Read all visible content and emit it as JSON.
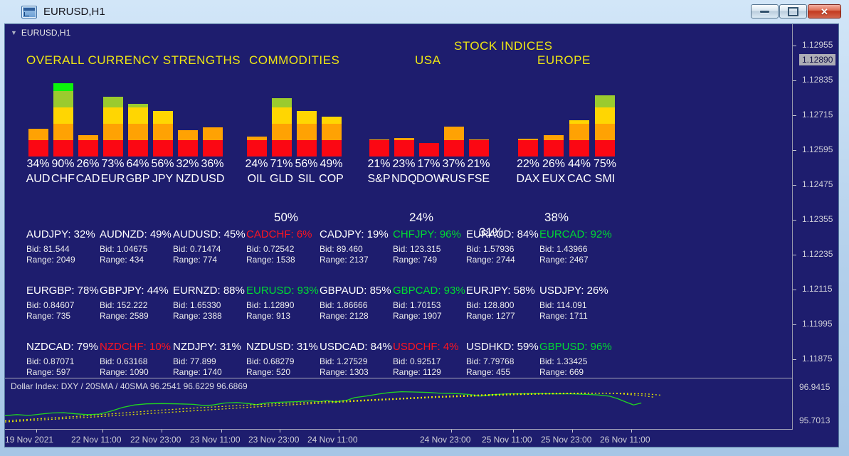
{
  "window": {
    "title": "EURUSD,H1"
  },
  "icons": {
    "dropdown": "▼"
  },
  "chart": {
    "symbol_label": "EURUSD,H1"
  },
  "sections": {
    "currency_strengths": "OVERALL CURRENCY STRENGTHS",
    "commodities": "COMMODITIES",
    "stock_indices": "STOCK INDICES",
    "usa": "USA",
    "europe": "EUROPE"
  },
  "summaries": {
    "commodities": "50%",
    "usa": "24%",
    "overall": "31%",
    "europe": "38%"
  },
  "bar_band_colors": [
    "#fb0713",
    "#ffa203",
    "#ffd602",
    "#9bcb2e",
    "#0bf50b"
  ],
  "text_colors": {
    "up": "#00dc32",
    "down": "#ff1420",
    "neutral": "#ffffff"
  },
  "chart_data": [
    {
      "type": "bar",
      "name": "overall_currency_strengths",
      "title": "OVERALL CURRENCY STRENGTHS",
      "categories": [
        "AUD",
        "CHF",
        "CAD",
        "EUR",
        "GBP",
        "JPY",
        "NZD",
        "USD"
      ],
      "values": [
        34,
        90,
        26,
        73,
        64,
        56,
        32,
        36
      ],
      "ylim": [
        0,
        100
      ]
    },
    {
      "type": "bar",
      "name": "commodities",
      "title": "COMMODITIES",
      "categories": [
        "OIL",
        "GLD",
        "SIL",
        "COP"
      ],
      "values": [
        24,
        71,
        56,
        49
      ],
      "ylim": [
        0,
        100
      ],
      "summary": "50%"
    },
    {
      "type": "bar",
      "name": "usa_stock_indices",
      "title": "USA",
      "categories": [
        "S&P",
        "NDQ",
        "DOW",
        "RUS",
        "FSE"
      ],
      "values": [
        21,
        23,
        17,
        37,
        21
      ],
      "ylim": [
        0,
        100
      ],
      "summary": "24%"
    },
    {
      "type": "bar",
      "name": "europe_stock_indices",
      "title": "EUROPE",
      "categories": [
        "DAX",
        "EUX",
        "CAC",
        "SMI"
      ],
      "values": [
        22,
        26,
        44,
        75
      ],
      "ylim": [
        0,
        100
      ],
      "summary": "38%"
    },
    {
      "type": "line",
      "name": "dollar_index",
      "title": "Dollar Index: DXY / 20SMA / 40SMA 96.2541 96.6229 96.6869",
      "ylim": [
        95.7013,
        96.9415
      ],
      "series": [
        {
          "name": "DXY",
          "color": "#21d421",
          "style": "solid",
          "points": [
            [
              0,
              95.93
            ],
            [
              0.015,
              95.97
            ],
            [
              0.03,
              95.94
            ],
            [
              0.045,
              95.99
            ],
            [
              0.06,
              96.03
            ],
            [
              0.075,
              96.04
            ],
            [
              0.09,
              96.0
            ],
            [
              0.105,
              95.97
            ],
            [
              0.12,
              95.99
            ],
            [
              0.135,
              96.1
            ],
            [
              0.15,
              96.24
            ],
            [
              0.165,
              96.33
            ],
            [
              0.18,
              96.37
            ],
            [
              0.2,
              96.38
            ],
            [
              0.22,
              96.37
            ],
            [
              0.24,
              96.35
            ],
            [
              0.255,
              96.3
            ],
            [
              0.265,
              96.33
            ],
            [
              0.28,
              96.4
            ],
            [
              0.295,
              96.42
            ],
            [
              0.31,
              96.38
            ],
            [
              0.32,
              96.34
            ],
            [
              0.335,
              96.41
            ],
            [
              0.35,
              96.43
            ],
            [
              0.37,
              96.45
            ],
            [
              0.39,
              96.48
            ],
            [
              0.4,
              96.45
            ],
            [
              0.41,
              96.49
            ],
            [
              0.42,
              96.44
            ],
            [
              0.435,
              96.5
            ],
            [
              0.445,
              96.6
            ],
            [
              0.46,
              96.66
            ],
            [
              0.475,
              96.73
            ],
            [
              0.49,
              96.79
            ],
            [
              0.505,
              96.82
            ],
            [
              0.52,
              96.81
            ],
            [
              0.54,
              96.79
            ],
            [
              0.555,
              96.76
            ],
            [
              0.575,
              96.75
            ],
            [
              0.59,
              96.72
            ],
            [
              0.605,
              96.66
            ],
            [
              0.62,
              96.71
            ],
            [
              0.64,
              96.74
            ],
            [
              0.66,
              96.74
            ],
            [
              0.68,
              96.75
            ],
            [
              0.7,
              96.74
            ],
            [
              0.72,
              96.74
            ],
            [
              0.74,
              96.72
            ],
            [
              0.755,
              96.7
            ],
            [
              0.77,
              96.65
            ],
            [
              0.78,
              96.56
            ],
            [
              0.79,
              96.44
            ],
            [
              0.8,
              96.33
            ],
            [
              0.81,
              96.4
            ]
          ]
        },
        {
          "name": "20SMA",
          "color": "#e8e800",
          "style": "dotted",
          "points": [
            [
              0,
              95.74
            ],
            [
              0.05,
              95.83
            ],
            [
              0.1,
              95.92
            ],
            [
              0.15,
              96.03
            ],
            [
              0.2,
              96.14
            ],
            [
              0.25,
              96.23
            ],
            [
              0.3,
              96.31
            ],
            [
              0.35,
              96.38
            ],
            [
              0.4,
              96.44
            ],
            [
              0.45,
              96.5
            ],
            [
              0.5,
              96.57
            ],
            [
              0.55,
              96.64
            ],
            [
              0.6,
              96.7
            ],
            [
              0.65,
              96.74
            ],
            [
              0.7,
              96.76
            ],
            [
              0.74,
              96.77
            ],
            [
              0.78,
              96.75
            ],
            [
              0.81,
              96.68
            ],
            [
              0.825,
              96.62
            ]
          ]
        },
        {
          "name": "40SMA",
          "color": "#e8e800",
          "style": "dotted",
          "points": [
            [
              0,
              95.7
            ],
            [
              0.05,
              95.78
            ],
            [
              0.1,
              95.86
            ],
            [
              0.15,
              95.95
            ],
            [
              0.2,
              96.04
            ],
            [
              0.25,
              96.13
            ],
            [
              0.3,
              96.22
            ],
            [
              0.35,
              96.31
            ],
            [
              0.4,
              96.39
            ],
            [
              0.45,
              96.47
            ],
            [
              0.5,
              96.54
            ],
            [
              0.55,
              96.61
            ],
            [
              0.6,
              96.66
            ],
            [
              0.65,
              96.71
            ],
            [
              0.7,
              96.74
            ],
            [
              0.75,
              96.76
            ],
            [
              0.79,
              96.76
            ],
            [
              0.82,
              96.73
            ],
            [
              0.835,
              96.69
            ]
          ]
        }
      ]
    }
  ],
  "labels": {
    "bid": "Bid:",
    "range": "Range:"
  },
  "pairs": [
    {
      "pair": "AUDJPY",
      "pct": "32%",
      "bid": "81.544",
      "range": "2049",
      "trend": "neutral"
    },
    {
      "pair": "AUDNZD",
      "pct": "49%",
      "bid": "1.04675",
      "range": "434",
      "trend": "neutral"
    },
    {
      "pair": "AUDUSD",
      "pct": "45%",
      "bid": "0.71474",
      "range": "774",
      "trend": "neutral"
    },
    {
      "pair": "CADCHF",
      "pct": "6%",
      "bid": "0.72542",
      "range": "1538",
      "trend": "down"
    },
    {
      "pair": "CADJPY",
      "pct": "19%",
      "bid": "89.460",
      "range": "2137",
      "trend": "neutral"
    },
    {
      "pair": "CHFJPY",
      "pct": "96%",
      "bid": "123.315",
      "range": "749",
      "trend": "up"
    },
    {
      "pair": "EURAUD",
      "pct": "84%",
      "bid": "1.57936",
      "range": "2744",
      "trend": "neutral"
    },
    {
      "pair": "EURCAD",
      "pct": "92%",
      "bid": "1.43966",
      "range": "2467",
      "trend": "up"
    },
    {
      "pair": "EURGBP",
      "pct": "78%",
      "bid": "0.84607",
      "range": "735",
      "trend": "neutral"
    },
    {
      "pair": "GBPJPY",
      "pct": "44%",
      "bid": "152.222",
      "range": "2589",
      "trend": "neutral"
    },
    {
      "pair": "EURNZD",
      "pct": "88%",
      "bid": "1.65330",
      "range": "2388",
      "trend": "neutral"
    },
    {
      "pair": "EURUSD",
      "pct": "93%",
      "bid": "1.12890",
      "range": "913",
      "trend": "up"
    },
    {
      "pair": "GBPAUD",
      "pct": "85%",
      "bid": "1.86666",
      "range": "2128",
      "trend": "neutral"
    },
    {
      "pair": "GBPCAD",
      "pct": "93%",
      "bid": "1.70153",
      "range": "1907",
      "trend": "up"
    },
    {
      "pair": "EURJPY",
      "pct": "58%",
      "bid": "128.800",
      "range": "1277",
      "trend": "neutral"
    },
    {
      "pair": "USDJPY",
      "pct": "26%",
      "bid": "114.091",
      "range": "1711",
      "trend": "neutral"
    },
    {
      "pair": "NZDCAD",
      "pct": "79%",
      "bid": "0.87071",
      "range": "597",
      "trend": "neutral"
    },
    {
      "pair": "NZDCHF",
      "pct": "10%",
      "bid": "0.63168",
      "range": "1090",
      "trend": "down"
    },
    {
      "pair": "NZDJPY",
      "pct": "31%",
      "bid": "77.899",
      "range": "1740",
      "trend": "neutral"
    },
    {
      "pair": "NZDUSD",
      "pct": "31%",
      "bid": "0.68279",
      "range": "520",
      "trend": "neutral"
    },
    {
      "pair": "USDCAD",
      "pct": "84%",
      "bid": "1.27529",
      "range": "1303",
      "trend": "neutral"
    },
    {
      "pair": "USDCHF",
      "pct": "4%",
      "bid": "0.92517",
      "range": "1129",
      "trend": "down"
    },
    {
      "pair": "USDHKD",
      "pct": "59%",
      "bid": "7.79768",
      "range": "455",
      "trend": "neutral"
    },
    {
      "pair": "GBPUSD",
      "pct": "96%",
      "bid": "1.33425",
      "range": "669",
      "trend": "up"
    }
  ],
  "price_axis": {
    "ticks": [
      "1.12955",
      "1.12835",
      "1.12715",
      "1.12595",
      "1.12475",
      "1.12355",
      "1.12235",
      "1.12115",
      "1.11995",
      "1.11875"
    ],
    "current": "1.12890"
  },
  "subwindow": {
    "label": "Dollar Index: DXY / 20SMA / 40SMA 96.2541 96.6229 96.6869",
    "axis": [
      "96.9415",
      "95.7013"
    ]
  },
  "time_axis": [
    "19 Nov 2021",
    "22 Nov 11:00",
    "22 Nov 23:00",
    "23 Nov 11:00",
    "23 Nov 23:00",
    "24 Nov 11:00",
    "24 Nov 23:00",
    "25 Nov 11:00",
    "25 Nov 23:00",
    "26 Nov 11:00"
  ]
}
